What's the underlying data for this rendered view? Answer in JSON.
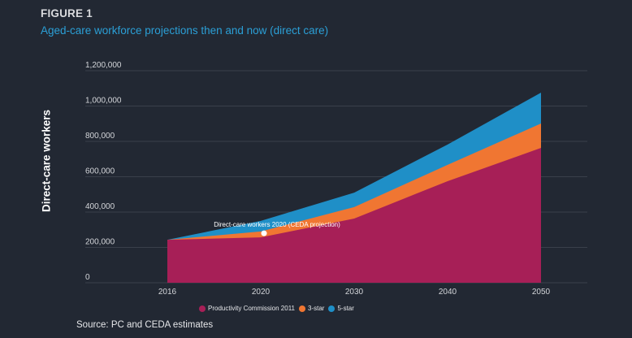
{
  "figure_label": "FIGURE 1",
  "figure_title": "Aged-care workforce projections then and now (direct care)",
  "source": "Source: PC and CEDA estimates",
  "colors": {
    "background": "#222833",
    "gridline": "#3a404b",
    "productivity_commission": "#a71f57",
    "three_star": "#f07632",
    "five_star": "#1f8fc7",
    "title": "#2b9fd6"
  },
  "chart_data": {
    "type": "area",
    "title": "Aged-care workforce projections then and now (direct care)",
    "xlabel": "",
    "ylabel": "Direct-care workers",
    "categories": [
      "2016",
      "2020",
      "2030",
      "2040",
      "2050"
    ],
    "y_ticks": [
      0,
      200000,
      400000,
      600000,
      800000,
      1000000,
      1200000
    ],
    "y_tick_labels": [
      "0",
      "200,000",
      "400,000",
      "600,000",
      "800,000",
      "1,000,000",
      "1,200,000"
    ],
    "ylim": [
      0,
      1200000
    ],
    "grid": true,
    "legend_position": "bottom-center",
    "series": [
      {
        "name": "5-star",
        "color": "#1f8fc7",
        "values": [
          243000,
          350000,
          510000,
          782000,
          1076000
        ]
      },
      {
        "name": "3-star",
        "color": "#f07632",
        "values": [
          243000,
          290000,
          428000,
          667000,
          901000
        ]
      },
      {
        "name": "Productivity Commission 2011",
        "color": "#a71f57",
        "values": [
          243000,
          257000,
          363000,
          575000,
          763000
        ]
      }
    ],
    "legend": [
      "Productivity Commission 2011",
      "3-star",
      "5-star"
    ],
    "annotations": [
      {
        "text": "Direct-care workers 2020 (CEDA projection)",
        "x": "2020",
        "y": 280000
      }
    ]
  }
}
